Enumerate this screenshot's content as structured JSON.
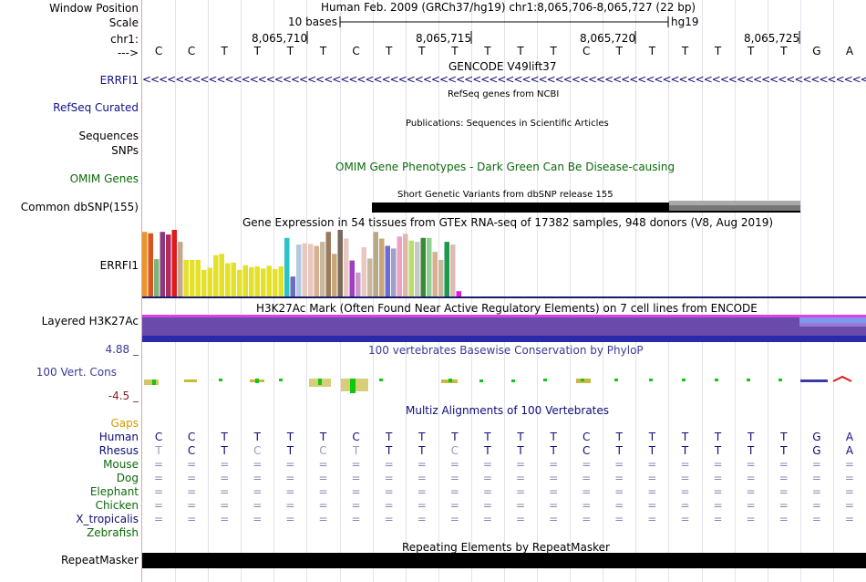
{
  "header": {
    "window_position_label": "Window Position",
    "scale_label": "Scale",
    "chrom_label": "chr1:",
    "strand_label": "--->",
    "assembly_position": "Human Feb. 2009 (GRCh37/hg19)   chr1:8,065,706-8,065,727 (22 bp)",
    "scale_text": "10 bases",
    "scale_db": "hg19",
    "coordinates": [
      "8,065,710",
      "8,065,715",
      "8,065,720",
      "8,065,725"
    ]
  },
  "sequence": [
    "C",
    "C",
    "T",
    "T",
    "T",
    "T",
    "C",
    "T",
    "T",
    "T",
    "T",
    "T",
    "T",
    "C",
    "T",
    "T",
    "T",
    "T",
    "T",
    "T",
    "G",
    "A"
  ],
  "tracks": {
    "gencode": {
      "label": "ERRFI1",
      "title": "GENCODE V49lift37"
    },
    "refseq": {
      "label": "RefSeq Curated",
      "title": "RefSeq genes from NCBI"
    },
    "publications": {
      "label": "Sequences",
      "title": "Publications: Sequences in Scientific Articles"
    },
    "snps": {
      "label": "SNPs"
    },
    "omim": {
      "label": "OMIM Genes",
      "title": "OMIM Gene Phenotypes - Dark Green Can Be Disease-causing"
    },
    "dbsnp": {
      "label": "Common dbSNP(155)",
      "title": "Short Genetic Variants from dbSNP release 155"
    },
    "gtex": {
      "label": "ERRFI1",
      "title": "Gene Expression in 54 tissues from GTEx RNA-seq of 17382 samples, 948 donors (V8, Aug 2019)"
    },
    "h3k27ac": {
      "label": "Layered H3K27Ac",
      "title": "H3K27Ac Mark (Often Found Near Active Regulatory Elements) on 7 cell lines from ENCODE"
    },
    "conservation": {
      "label": "100 Vert. Cons",
      "max": "4.88 _",
      "min": "-4.5 _",
      "title": "100 vertebrates Basewise Conservation by PhyloP"
    },
    "multiz": {
      "title": "Multiz Alignments of 100 Vertebrates",
      "gaps_label": "Gaps",
      "species": [
        "Human",
        "Rhesus",
        "Mouse",
        "Dog",
        "Elephant",
        "Chicken",
        "X_tropicalis",
        "Zebrafish"
      ],
      "rhesus": [
        "T",
        "C",
        "T",
        "C",
        "T",
        "C",
        "T",
        "T",
        "T",
        "C",
        "T",
        "T",
        "T",
        "C",
        "T",
        "T",
        "T",
        "T",
        "T",
        "T",
        "G",
        "A"
      ]
    },
    "repeatmasker": {
      "label": "RepeatMasker",
      "title": "Repeating Elements by RepeatMasker"
    }
  },
  "gtex_bars": [
    {
      "v": 0.97,
      "c": "#e8962a"
    },
    {
      "v": 0.95,
      "c": "#d9541e"
    },
    {
      "v": 0.56,
      "c": "#7db37d"
    },
    {
      "v": 0.97,
      "c": "#8a3a7b"
    },
    {
      "v": 0.93,
      "c": "#b12a5e"
    },
    {
      "v": 1.0,
      "c": "#e01a1a"
    },
    {
      "v": 0.82,
      "c": "#c4a88a"
    },
    {
      "v": 0.55,
      "c": "#e5e02a"
    },
    {
      "v": 0.55,
      "c": "#e5e02a"
    },
    {
      "v": 0.55,
      "c": "#e5e02a"
    },
    {
      "v": 0.4,
      "c": "#e5e02a"
    },
    {
      "v": 0.43,
      "c": "#e5e02a"
    },
    {
      "v": 0.62,
      "c": "#e5e02a"
    },
    {
      "v": 0.64,
      "c": "#e5e02a"
    },
    {
      "v": 0.5,
      "c": "#e5e02a"
    },
    {
      "v": 0.51,
      "c": "#e5e02a"
    },
    {
      "v": 0.4,
      "c": "#e5e02a"
    },
    {
      "v": 0.47,
      "c": "#e5e02a"
    },
    {
      "v": 0.44,
      "c": "#e5e02a"
    },
    {
      "v": 0.45,
      "c": "#e5e02a"
    },
    {
      "v": 0.42,
      "c": "#e5e02a"
    },
    {
      "v": 0.46,
      "c": "#e5e02a"
    },
    {
      "v": 0.41,
      "c": "#e5e02a"
    },
    {
      "v": 0.45,
      "c": "#e5e02a"
    },
    {
      "v": 0.88,
      "c": "#2ac4c4"
    },
    {
      "v": 0.3,
      "c": "#6d6dbd"
    },
    {
      "v": 0.78,
      "c": "#b0c8e0"
    },
    {
      "v": 0.8,
      "c": "#e8c8c0"
    },
    {
      "v": 0.79,
      "c": "#e8c8c0"
    },
    {
      "v": 0.76,
      "c": "#d8b090"
    },
    {
      "v": 0.82,
      "c": "#c8b8a0"
    },
    {
      "v": 0.97,
      "c": "#9a7a5a"
    },
    {
      "v": 0.64,
      "c": "#c8a878"
    },
    {
      "v": 1.0,
      "c": "#7a6a5a"
    },
    {
      "v": 0.87,
      "c": "#e8c8c0"
    },
    {
      "v": 0.54,
      "c": "#a040c0"
    },
    {
      "v": 0.36,
      "c": "#c89ac8"
    },
    {
      "v": 0.74,
      "c": "#e8c8c0"
    },
    {
      "v": 0.57,
      "c": "#c8b8a0"
    },
    {
      "v": 0.97,
      "c": "#b8a888"
    },
    {
      "v": 0.87,
      "c": "#c8a878"
    },
    {
      "v": 0.76,
      "c": "#6b6bdb"
    },
    {
      "v": 0.72,
      "c": "#a0a0c8"
    },
    {
      "v": 0.9,
      "c": "#f0a0c0"
    },
    {
      "v": 0.94,
      "c": "#e0b8a8"
    },
    {
      "v": 0.84,
      "c": "#b8e068"
    },
    {
      "v": 0.82,
      "c": "#c8c8c8"
    },
    {
      "v": 0.88,
      "c": "#3a8a3a"
    },
    {
      "v": 0.88,
      "c": "#90d090"
    },
    {
      "v": 0.67,
      "c": "#d8b090"
    },
    {
      "v": 0.55,
      "c": "#c8b8a0"
    },
    {
      "v": 0.82,
      "c": "#1a9a4a"
    },
    {
      "v": 0.78,
      "c": "#e0b8b8"
    },
    {
      "v": 0.08,
      "c": "#e01ae0"
    }
  ],
  "colors": {
    "gencode": "#0c0c78",
    "label_blue": "#111188",
    "omim": "#0a6a0a",
    "gaps": "#d49a00",
    "species": "#0a6a0a",
    "cons_label": "#3a3a9a",
    "cons_min": "#8a1a1a",
    "h3k27ac": "#6a4aaa"
  }
}
